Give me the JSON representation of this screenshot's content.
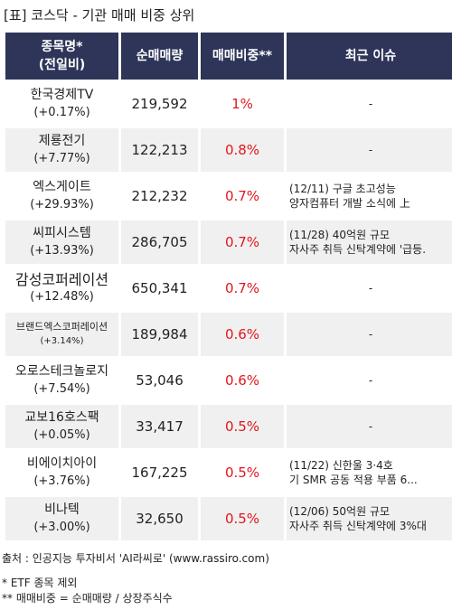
{
  "title": "[표] 코스닥 - 기관 매매 비중 상위",
  "table": {
    "headers": {
      "name_line1": "종목명*",
      "name_line2": "(전일비)",
      "volume": "순매매량",
      "ratio": "매매비중**",
      "issue": "최근 이슈"
    },
    "rows": [
      {
        "name": "한국경제TV",
        "change": "(+0.17%)",
        "volume": "219,592",
        "ratio": "1%",
        "issue1": "-",
        "issue2": ""
      },
      {
        "name": "제룡전기",
        "change": "(+7.77%)",
        "volume": "122,213",
        "ratio": "0.8%",
        "issue1": "-",
        "issue2": ""
      },
      {
        "name": "엑스게이트",
        "change": "(+29.93%)",
        "volume": "212,232",
        "ratio": "0.7%",
        "issue1": "(12/11) 구글 초고성능",
        "issue2": "양자컴퓨터 개발 소식에 上"
      },
      {
        "name": "씨피시스템",
        "change": "(+13.93%)",
        "volume": "286,705",
        "ratio": "0.7%",
        "issue1": "(11/28) 40억원 규모",
        "issue2": "자사주 취득 신탁계약에 '급등."
      },
      {
        "name": "감성코퍼레이션",
        "change": "(+12.48%)",
        "volume": "650,341",
        "ratio": "0.7%",
        "issue1": "-",
        "issue2": ""
      },
      {
        "name": "브랜드엑스코퍼레이션",
        "change": "(+3.14%)",
        "volume": "189,984",
        "ratio": "0.6%",
        "issue1": "-",
        "issue2": ""
      },
      {
        "name": "오로스테크놀로지",
        "change": "(+7.54%)",
        "volume": "53,046",
        "ratio": "0.6%",
        "issue1": "-",
        "issue2": ""
      },
      {
        "name": "교보16호스팩",
        "change": "(+0.05%)",
        "volume": "33,417",
        "ratio": "0.5%",
        "issue1": "-",
        "issue2": ""
      },
      {
        "name": "비에이치아이",
        "change": "(+3.76%)",
        "volume": "167,225",
        "ratio": "0.5%",
        "issue1": "(11/22) 신한울 3·4호",
        "issue2": "기 SMR 공동 적용 부품 6..."
      },
      {
        "name": "비나텍",
        "change": "(+3.00%)",
        "volume": "32,650",
        "ratio": "0.5%",
        "issue1": "(12/06) 50억원 규모",
        "issue2": "자사주 취득 신탁계약에 3%대"
      }
    ]
  },
  "footer": {
    "source": "출처 : 인공지능 투자비서 'AI라씨로' (www.rassiro.com)",
    "note1": "* ETF 종목 제외",
    "note2": "** 매매비중 = 순매매량 / 상장주식수"
  },
  "colors": {
    "header_bg": "#2e3559",
    "ratio_red": "#e0161e",
    "stripe": "#f0f0f0"
  }
}
